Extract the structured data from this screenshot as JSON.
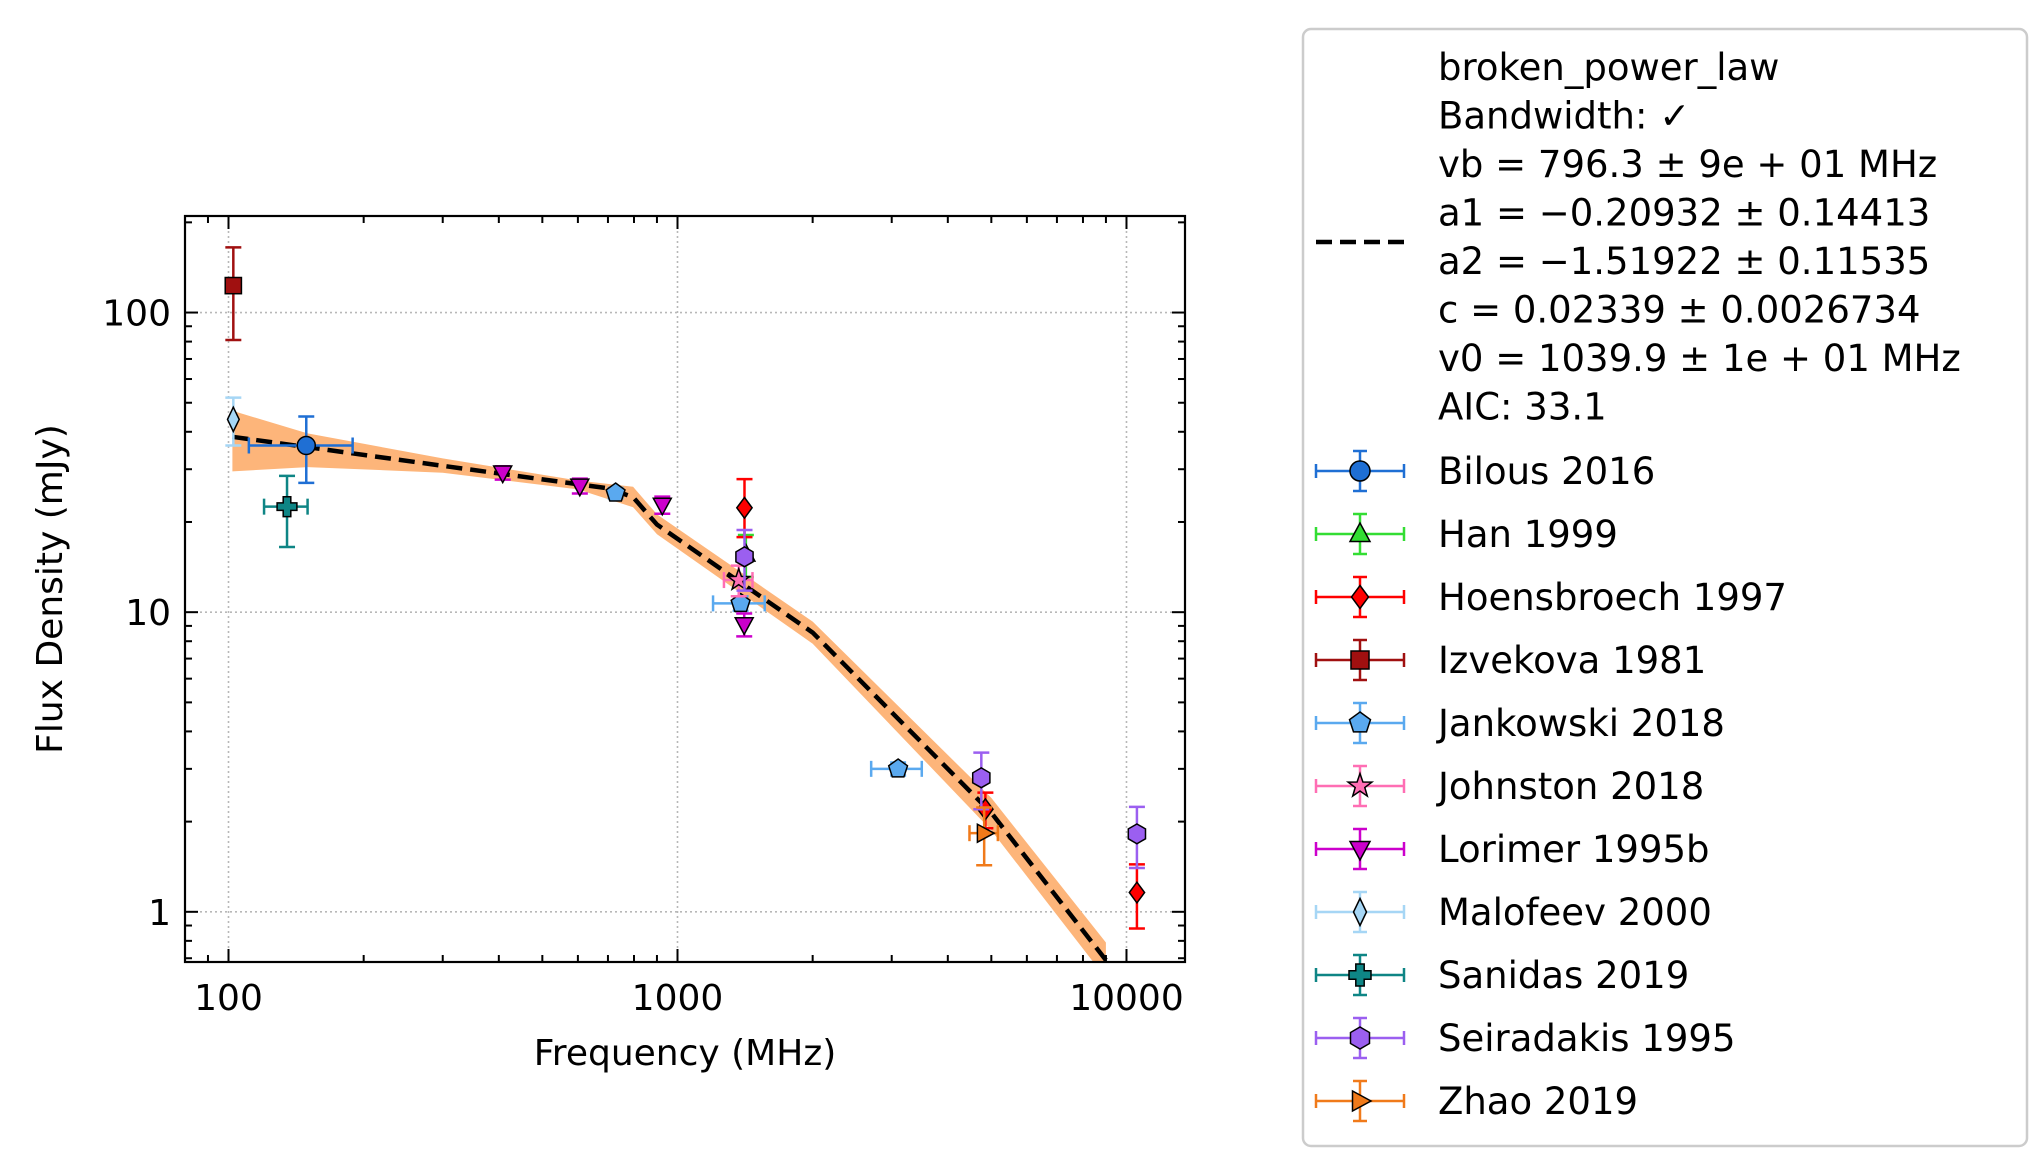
{
  "chart_data": {
    "type": "scatter",
    "xlabel": "Frequency (MHz)",
    "ylabel": "Flux Density (mJy)",
    "x_scale": "log",
    "y_scale": "log",
    "xlim": [
      80,
      13500
    ],
    "ylim": [
      0.68,
      210
    ],
    "x_ticks": [
      {
        "value": 100,
        "label": "100"
      },
      {
        "value": 1000,
        "label": "1000"
      },
      {
        "value": 10000,
        "label": "10000"
      }
    ],
    "y_ticks": [
      {
        "value": 1,
        "label": "1"
      },
      {
        "value": 10,
        "label": "10"
      },
      {
        "value": 100,
        "label": "100"
      }
    ],
    "grid": true,
    "legend_position": "outside-right",
    "fit": {
      "model_name": "broken_power_law",
      "legend_lines": [
        "broken_power_law",
        "Bandwidth: ✓",
        "vb = 796.3 ± 9e + 01 MHz",
        "a1 = −0.20932 ± 0.14413",
        "a2 = −1.51922 ± 0.11535",
        "c = 0.02339 ± 0.0026734",
        "v0 = 1039.9 ± 1e + 01 MHz",
        "AIC: 33.1"
      ],
      "line_color": "#000000",
      "band_color": "#fdb57a",
      "curve": [
        [
          102,
          38.5
        ],
        [
          300,
          30.8
        ],
        [
          700,
          25.9
        ],
        [
          796.3,
          24.2
        ],
        [
          900,
          19.6
        ],
        [
          2000,
          8.55
        ],
        [
          5000,
          2.14
        ],
        [
          9000,
          0.69
        ]
      ],
      "band_upper": [
        [
          102,
          47
        ],
        [
          150,
          39.5
        ],
        [
          300,
          32.6
        ],
        [
          600,
          27.5
        ],
        [
          796.3,
          26.2
        ],
        [
          900,
          21.2
        ],
        [
          2000,
          9.3
        ],
        [
          5000,
          2.4
        ],
        [
          9000,
          0.79
        ]
      ],
      "band_lower": [
        [
          102,
          29.5
        ],
        [
          150,
          30.5
        ],
        [
          300,
          29.2
        ],
        [
          600,
          25.7
        ],
        [
          796.3,
          22.4
        ],
        [
          900,
          18.2
        ],
        [
          2000,
          7.85
        ],
        [
          5000,
          1.87
        ],
        [
          9000,
          0.6
        ]
      ]
    },
    "series": [
      {
        "name": "Bilous 2016",
        "marker": "circle",
        "color": "#1f6fd4",
        "points": [
          {
            "x": 149,
            "y": 36,
            "xerr": [
              38,
              40
            ],
            "yerr": [
              9,
              9
            ]
          }
        ]
      },
      {
        "name": "Han 1999",
        "marker": "triangle-up",
        "color": "#33dd33",
        "points": [
          {
            "x": 1420,
            "y": 15.6,
            "xerr": [
              0,
              0
            ],
            "yerr": [
              2.5,
              2.5
            ]
          }
        ]
      },
      {
        "name": "Hoensbroech 1997",
        "marker": "diamond",
        "color": "#ff0000",
        "points": [
          {
            "x": 1410,
            "y": 22.3,
            "xerr": [
              0,
              0
            ],
            "yerr": [
              4.5,
              5.5
            ]
          },
          {
            "x": 4850,
            "y": 2.2,
            "xerr": [
              0,
              0
            ],
            "yerr": [
              0.3,
              0.3
            ]
          },
          {
            "x": 10550,
            "y": 1.16,
            "xerr": [
              0,
              0
            ],
            "yerr": [
              0.28,
              0.28
            ]
          }
        ]
      },
      {
        "name": "Izvekova 1981",
        "marker": "square",
        "color": "#a01010",
        "points": [
          {
            "x": 102.5,
            "y": 123,
            "xerr": [
              0,
              0
            ],
            "yerr": [
              42,
              42
            ]
          }
        ]
      },
      {
        "name": "Jankowski 2018",
        "marker": "pentagon",
        "color": "#5aa9ef",
        "points": [
          {
            "x": 728,
            "y": 25,
            "xerr": [
              0,
              0
            ],
            "yerr": [
              1,
              1
            ]
          },
          {
            "x": 1382,
            "y": 10.7,
            "xerr": [
              182,
              182
            ],
            "yerr": [
              0.6,
              0.6
            ]
          },
          {
            "x": 3100,
            "y": 3.0,
            "xerr": [
              400,
              400
            ],
            "yerr": [
              0.15,
              0.15
            ]
          }
        ]
      },
      {
        "name": "Johnston 2018",
        "marker": "star",
        "color": "#ff6eb4",
        "points": [
          {
            "x": 1369,
            "y": 12.8,
            "xerr": [
              100,
              100
            ],
            "yerr": [
              1.5,
              1.5
            ]
          }
        ]
      },
      {
        "name": "Lorimer 1995b",
        "marker": "triangle-down",
        "color": "#cc00cc",
        "points": [
          {
            "x": 408,
            "y": 29.2,
            "xerr": [
              0,
              0
            ],
            "yerr": [
              1.5,
              1.5
            ]
          },
          {
            "x": 606,
            "y": 26.4,
            "xerr": [
              0,
              0
            ],
            "yerr": [
              1.5,
              1.5
            ]
          },
          {
            "x": 925,
            "y": 22.8,
            "xerr": [
              0,
              0
            ],
            "yerr": [
              1.5,
              1.5
            ]
          },
          {
            "x": 1408,
            "y": 9.1,
            "xerr": [
              0,
              0
            ],
            "yerr": [
              0.8,
              0.8
            ]
          }
        ]
      },
      {
        "name": "Malofeev 2000",
        "marker": "thin-diamond",
        "color": "#a6d6f5",
        "points": [
          {
            "x": 102.5,
            "y": 44,
            "xerr": [
              0,
              0
            ],
            "yerr": [
              8,
              8
            ]
          }
        ]
      },
      {
        "name": "Sanidas 2019",
        "marker": "plus",
        "color": "#0e8585",
        "points": [
          {
            "x": 135,
            "y": 22.5,
            "xerr": [
              15,
              15
            ],
            "yerr": [
              6,
              6
            ]
          }
        ]
      },
      {
        "name": "Seiradakis 1995",
        "marker": "hexagon",
        "color": "#9b5ff0",
        "points": [
          {
            "x": 1410,
            "y": 15.3,
            "xerr": [
              0,
              0
            ],
            "yerr": [
              3.5,
              3.5
            ]
          },
          {
            "x": 4750,
            "y": 2.8,
            "xerr": [
              0,
              0
            ],
            "yerr": [
              0.6,
              0.6
            ]
          },
          {
            "x": 10550,
            "y": 1.82,
            "xerr": [
              0,
              0
            ],
            "yerr": [
              0.42,
              0.42
            ]
          }
        ]
      },
      {
        "name": "Zhao 2019",
        "marker": "triangle-right",
        "color": "#f07a1a",
        "points": [
          {
            "x": 4820,
            "y": 1.83,
            "xerr": [
              350,
              350
            ],
            "yerr": [
              0.4,
              0.4
            ]
          }
        ]
      }
    ]
  }
}
